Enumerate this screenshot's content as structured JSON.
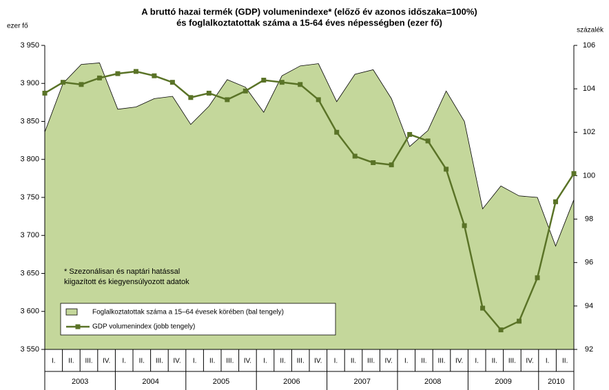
{
  "chart_data": {
    "type": "area_line",
    "title_lines": [
      "A bruttó hazai termék (GDP) volumenindexe* (előző év azonos időszaka=100%)",
      "és foglalkoztatottak száma a 15-64 éves népességben (ezer fő)"
    ],
    "y_label": "ezer fő",
    "y2_label": "százalék",
    "annotation_lines": [
      "* Szezonálisan és naptári hatással",
      "kiigazított és kiegyensúlyozott adatok"
    ],
    "years": [
      {
        "year": "2003",
        "quarters": [
          "I.",
          "II.",
          "III.",
          "IV."
        ]
      },
      {
        "year": "2004",
        "quarters": [
          "I.",
          "II.",
          "III.",
          "IV."
        ]
      },
      {
        "year": "2005",
        "quarters": [
          "I.",
          "II.",
          "III.",
          "IV."
        ]
      },
      {
        "year": "2006",
        "quarters": [
          "I.",
          "II.",
          "III.",
          "IV."
        ]
      },
      {
        "year": "2007",
        "quarters": [
          "I.",
          "II.",
          "III.",
          "IV."
        ]
      },
      {
        "year": "2008",
        "quarters": [
          "I.",
          "II.",
          "III.",
          "IV."
        ]
      },
      {
        "year": "2009",
        "quarters": [
          "I.",
          "II.",
          "III.",
          "IV."
        ]
      },
      {
        "year": "2010",
        "quarters": [
          "I.",
          "II."
        ]
      }
    ],
    "series": [
      {
        "name": "Foglalkoztatottak száma a 15–64 évesek körében  (bal tengely)",
        "type": "area",
        "axis": "y",
        "color": "#c4d79b",
        "values": [
          3836,
          3900,
          3925,
          3927,
          3866,
          3869,
          3880,
          3883,
          3846,
          3870,
          3905,
          3895,
          3862,
          3910,
          3923,
          3926,
          3876,
          3912,
          3918,
          3880,
          3817,
          3838,
          3890,
          3850,
          3735,
          3765,
          3752,
          3750,
          3686,
          3747
        ]
      },
      {
        "name": "GDP volumenindex (jobb tengely)",
        "type": "line",
        "axis": "y2",
        "color": "#5a7327",
        "values": [
          103.8,
          104.3,
          104.2,
          104.5,
          104.7,
          104.8,
          104.6,
          104.3,
          103.6,
          103.8,
          103.5,
          103.9,
          104.4,
          104.3,
          104.2,
          103.5,
          102.0,
          100.9,
          100.6,
          100.5,
          101.9,
          101.6,
          100.3,
          97.7,
          93.9,
          92.9,
          93.3,
          95.3,
          98.8,
          100.1
        ]
      }
    ],
    "ylim": [
      3550,
      3950
    ],
    "yticks": [
      {
        "value": 3550,
        "label": "3 550"
      },
      {
        "value": 3600,
        "label": "3 600"
      },
      {
        "value": 3650,
        "label": "3 650"
      },
      {
        "value": 3700,
        "label": "3 700"
      },
      {
        "value": 3750,
        "label": "3 750"
      },
      {
        "value": 3800,
        "label": "3 800"
      },
      {
        "value": 3850,
        "label": "3 850"
      },
      {
        "value": 3900,
        "label": "3 900"
      },
      {
        "value": 3950,
        "label": "3 950"
      }
    ],
    "y2lim": [
      92,
      106
    ],
    "y2ticks": [
      92,
      94,
      96,
      98,
      100,
      102,
      104,
      106
    ]
  }
}
